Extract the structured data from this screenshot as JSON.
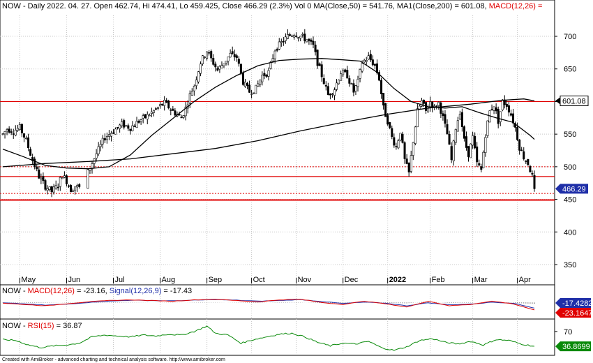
{
  "colors": {
    "candle": "#000000",
    "ma_line": "#000000",
    "resistance": "#e00000",
    "macd_line": "#e00000",
    "signal_line": "#1f2fa8",
    "rsi_line": "#0a8a0a",
    "grid": "#c8c8c8",
    "badge_price": "#1f2fa8",
    "badge_rsi": "#0a8a0a"
  },
  "header": {
    "main": "NOW - Daily 2022. 04. 27. Open 462.74, Hi 474.41, Lo 459.425, Close 466.29 (2.3%) Vol 0 MA(Close,50) = 541.76, MA1(Close,200) = 601.08, ",
    "main_red": "MACD(12,26) =",
    "macd_prefix": "NOW - ",
    "macd_red": "MACD(12,26)",
    "macd_mid": " = -23.16, ",
    "macd_blue": "Signal(12,26,9)",
    "macd_end": " = -17.43",
    "rsi_prefix": "NOW - ",
    "rsi_red": "RSI(15)",
    "rsi_end": " = 36.87"
  },
  "footer": "Created with AmiBroker - advanced charting and technical analysis software. http://www.amibroker.com",
  "chart_data": {
    "type": "candlestick",
    "symbol": "NOW",
    "y_ticks": [
      350,
      400,
      450,
      500,
      550,
      600,
      650,
      700
    ],
    "ylim": [
      320,
      730
    ],
    "x_labels": [
      "May",
      "Jun",
      "Jul",
      "Aug",
      "Sep",
      "Oct",
      "Nov",
      "Dec",
      "2022",
      "Feb",
      "Mar",
      "Apr"
    ],
    "x_range": [
      0,
      250
    ],
    "x_label_positions": [
      8,
      30,
      52,
      74,
      96,
      117,
      138,
      160,
      181,
      201,
      221,
      242
    ],
    "price_anchors": [
      [
        0,
        550
      ],
      [
        2,
        558
      ],
      [
        5,
        555
      ],
      [
        8,
        560
      ],
      [
        11,
        540
      ],
      [
        14,
        510
      ],
      [
        17,
        485
      ],
      [
        20,
        470
      ],
      [
        23,
        462
      ],
      [
        26,
        472
      ],
      [
        28,
        488
      ],
      [
        30,
        478
      ],
      [
        32,
        465
      ],
      [
        34,
        470
      ],
      [
        36,
        468
      ],
      [
        40,
        492
      ],
      [
        44,
        520
      ],
      [
        48,
        545
      ],
      [
        52,
        555
      ],
      [
        56,
        565
      ],
      [
        60,
        560
      ],
      [
        64,
        570
      ],
      [
        68,
        578
      ],
      [
        72,
        588
      ],
      [
        76,
        598
      ],
      [
        80,
        585
      ],
      [
        84,
        575
      ],
      [
        86,
        590
      ],
      [
        88,
        610
      ],
      [
        90,
        625
      ],
      [
        93,
        660
      ],
      [
        96,
        678
      ],
      [
        98,
        665
      ],
      [
        101,
        648
      ],
      [
        104,
        660
      ],
      [
        107,
        672
      ],
      [
        110,
        668
      ],
      [
        113,
        630
      ],
      [
        116,
        615
      ],
      [
        119,
        620
      ],
      [
        122,
        640
      ],
      [
        125,
        645
      ],
      [
        128,
        680
      ],
      [
        131,
        690
      ],
      [
        134,
        700
      ],
      [
        137,
        705
      ],
      [
        140,
        700
      ],
      [
        143,
        695
      ],
      [
        146,
        685
      ],
      [
        148,
        660
      ],
      [
        150,
        640
      ],
      [
        153,
        610
      ],
      [
        156,
        620
      ],
      [
        159,
        645
      ],
      [
        162,
        640
      ],
      [
        165,
        615
      ],
      [
        167,
        630
      ],
      [
        169,
        660
      ],
      [
        172,
        668
      ],
      [
        175,
        655
      ],
      [
        177,
        635
      ],
      [
        179,
        590
      ],
      [
        181,
        570
      ],
      [
        183,
        545
      ],
      [
        185,
        530
      ],
      [
        187,
        555
      ],
      [
        189,
        510
      ],
      [
        191,
        490
      ],
      [
        193,
        540
      ],
      [
        195,
        585
      ],
      [
        197,
        600
      ],
      [
        199,
        585
      ],
      [
        201,
        600
      ],
      [
        203,
        590
      ],
      [
        205,
        598
      ],
      [
        207,
        575
      ],
      [
        209,
        550
      ],
      [
        211,
        510
      ],
      [
        213,
        560
      ],
      [
        215,
        585
      ],
      [
        217,
        540
      ],
      [
        219,
        520
      ],
      [
        221,
        545
      ],
      [
        223,
        505
      ],
      [
        225,
        495
      ],
      [
        227,
        550
      ],
      [
        229,
        585
      ],
      [
        231,
        595
      ],
      [
        233,
        570
      ],
      [
        235,
        600
      ],
      [
        237,
        595
      ],
      [
        239,
        580
      ],
      [
        241,
        560
      ],
      [
        243,
        530
      ],
      [
        245,
        515
      ],
      [
        247,
        505
      ],
      [
        249,
        485
      ],
      [
        250,
        466
      ]
    ],
    "last_close": 466.29,
    "ma50_points": [
      [
        0,
        527
      ],
      [
        10,
        515
      ],
      [
        20,
        502
      ],
      [
        30,
        498
      ],
      [
        40,
        497
      ],
      [
        50,
        500
      ],
      [
        60,
        518
      ],
      [
        70,
        548
      ],
      [
        80,
        574
      ],
      [
        90,
        600
      ],
      [
        100,
        622
      ],
      [
        110,
        640
      ],
      [
        120,
        655
      ],
      [
        130,
        663
      ],
      [
        140,
        665
      ],
      [
        150,
        666
      ],
      [
        160,
        664
      ],
      [
        168,
        662
      ],
      [
        176,
        645
      ],
      [
        184,
        620
      ],
      [
        192,
        600
      ],
      [
        200,
        592
      ],
      [
        208,
        590
      ],
      [
        216,
        592
      ],
      [
        224,
        583
      ],
      [
        232,
        575
      ],
      [
        240,
        568
      ],
      [
        248,
        548
      ],
      [
        250,
        542
      ]
    ],
    "ma50_last": 541.76,
    "ma200_points": [
      [
        0,
        500
      ],
      [
        20,
        505
      ],
      [
        40,
        508
      ],
      [
        60,
        512
      ],
      [
        80,
        520
      ],
      [
        100,
        528
      ],
      [
        120,
        540
      ],
      [
        140,
        555
      ],
      [
        160,
        568
      ],
      [
        180,
        580
      ],
      [
        200,
        590
      ],
      [
        220,
        596
      ],
      [
        235,
        602
      ],
      [
        245,
        604
      ],
      [
        250,
        601
      ]
    ],
    "ma200_last": 601.08,
    "resistance_solid": [
      600,
      485,
      449
    ],
    "resistance_dotted": [
      500,
      459
    ],
    "price_badges": [
      "601.08",
      "466.29"
    ],
    "macd": {
      "ylim": [
        -40,
        20
      ],
      "last_macd": -23.16,
      "last_signal": -17.43,
      "badges": [
        "-17.4282",
        "-23.1647"
      ],
      "macd_anchors": [
        [
          0,
          -2
        ],
        [
          10,
          -6
        ],
        [
          20,
          -10
        ],
        [
          30,
          -4
        ],
        [
          40,
          2
        ],
        [
          50,
          6
        ],
        [
          60,
          8
        ],
        [
          70,
          6
        ],
        [
          80,
          4
        ],
        [
          90,
          8
        ],
        [
          100,
          10
        ],
        [
          110,
          6
        ],
        [
          120,
          2
        ],
        [
          130,
          8
        ],
        [
          140,
          10
        ],
        [
          150,
          0
        ],
        [
          160,
          -6
        ],
        [
          170,
          4
        ],
        [
          180,
          -4
        ],
        [
          190,
          -14
        ],
        [
          200,
          4
        ],
        [
          210,
          -10
        ],
        [
          220,
          -6
        ],
        [
          230,
          4
        ],
        [
          240,
          -4
        ],
        [
          250,
          -23
        ]
      ],
      "signal_anchors": [
        [
          0,
          -1
        ],
        [
          10,
          -4
        ],
        [
          20,
          -8
        ],
        [
          30,
          -5
        ],
        [
          40,
          0
        ],
        [
          50,
          4
        ],
        [
          60,
          7
        ],
        [
          70,
          6
        ],
        [
          80,
          5
        ],
        [
          90,
          7
        ],
        [
          100,
          9
        ],
        [
          110,
          7
        ],
        [
          120,
          4
        ],
        [
          130,
          6
        ],
        [
          140,
          9
        ],
        [
          150,
          3
        ],
        [
          160,
          -3
        ],
        [
          170,
          1
        ],
        [
          180,
          -2
        ],
        [
          190,
          -10
        ],
        [
          200,
          -1
        ],
        [
          210,
          -7
        ],
        [
          220,
          -5
        ],
        [
          230,
          1
        ],
        [
          240,
          -2
        ],
        [
          250,
          -17
        ]
      ]
    },
    "rsi": {
      "ylim": [
        20,
        90
      ],
      "tick": 70,
      "last_value": 36.87,
      "badge": "36.8699",
      "anchors": [
        [
          0,
          52
        ],
        [
          6,
          50
        ],
        [
          12,
          40
        ],
        [
          18,
          34
        ],
        [
          24,
          38
        ],
        [
          30,
          40
        ],
        [
          36,
          44
        ],
        [
          42,
          58
        ],
        [
          48,
          62
        ],
        [
          54,
          60
        ],
        [
          60,
          58
        ],
        [
          66,
          62
        ],
        [
          72,
          60
        ],
        [
          78,
          64
        ],
        [
          84,
          62
        ],
        [
          90,
          70
        ],
        [
          96,
          82
        ],
        [
          100,
          66
        ],
        [
          106,
          62
        ],
        [
          112,
          44
        ],
        [
          118,
          52
        ],
        [
          124,
          58
        ],
        [
          130,
          64
        ],
        [
          136,
          66
        ],
        [
          142,
          58
        ],
        [
          148,
          46
        ],
        [
          154,
          38
        ],
        [
          160,
          44
        ],
        [
          166,
          42
        ],
        [
          172,
          48
        ],
        [
          178,
          34
        ],
        [
          184,
          28
        ],
        [
          190,
          36
        ],
        [
          196,
          50
        ],
        [
          202,
          54
        ],
        [
          208,
          46
        ],
        [
          214,
          42
        ],
        [
          220,
          48
        ],
        [
          226,
          40
        ],
        [
          232,
          52
        ],
        [
          238,
          50
        ],
        [
          244,
          42
        ],
        [
          250,
          37
        ]
      ]
    }
  }
}
